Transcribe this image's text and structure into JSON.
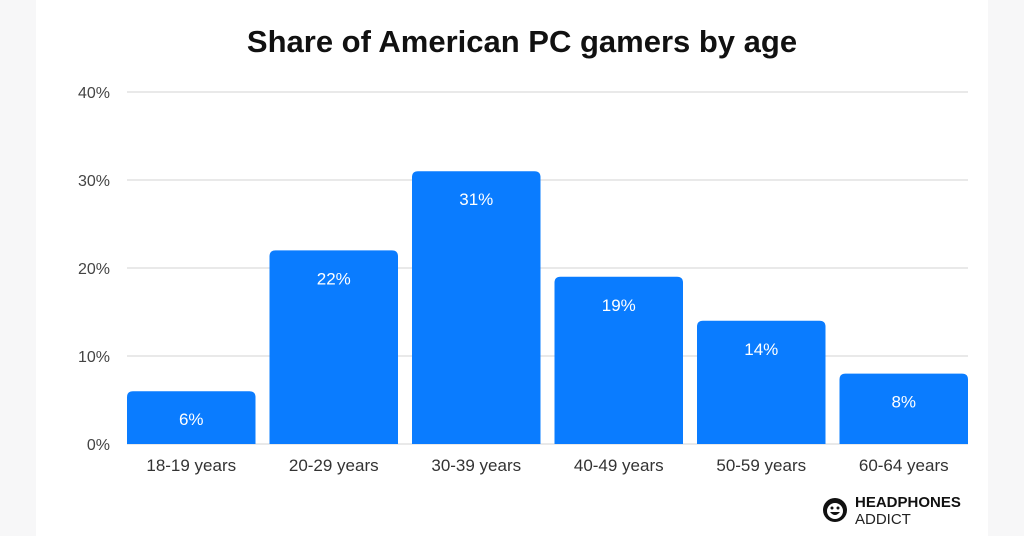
{
  "chart_data": {
    "type": "bar",
    "title": "Share of American PC gamers by age",
    "categories": [
      "18-19 years",
      "20-29 years",
      "30-39 years",
      "40-49 years",
      "50-59 years",
      "60-64 years"
    ],
    "values": [
      6,
      22,
      31,
      19,
      14,
      8
    ],
    "data_labels": [
      "6%",
      "22%",
      "31%",
      "19%",
      "14%",
      "8%"
    ],
    "ylim": [
      0,
      40
    ],
    "yticks": [
      0,
      10,
      20,
      30,
      40
    ],
    "ytick_labels": [
      "0%",
      "10%",
      "20%",
      "30%",
      "40%"
    ],
    "xlabel": "",
    "ylabel": "",
    "grid": true,
    "bar_color": "#0a7cff"
  },
  "brand": {
    "line1": "HEADPHONES",
    "line2": "ADDICT"
  }
}
